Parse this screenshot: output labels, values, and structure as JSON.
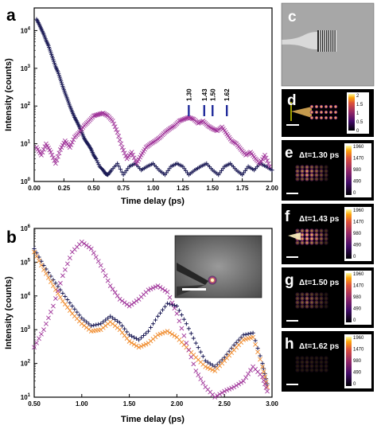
{
  "panel_labels": {
    "a": "a",
    "b": "b",
    "c": "c",
    "d": "d",
    "e": "e",
    "f": "f",
    "g": "g",
    "h": "h"
  },
  "colors": {
    "navy": "#1b1a55",
    "magenta": "#a0359a",
    "orange": "#f08a2a",
    "marker_blue": "#1f2a9a",
    "panel_bg": "#000000"
  },
  "chart_data": [
    {
      "id": "a",
      "type": "scatter",
      "xlabel": "Time delay (ps)",
      "ylabel": "Intensity (counts)",
      "xlim": [
        0,
        2
      ],
      "ylim_log10": [
        0,
        4.6
      ],
      "yscale": "log",
      "x_ticks": [
        "0.00",
        "0.25",
        "0.50",
        "0.75",
        "1.00",
        "1.25",
        "1.50",
        "1.75",
        "2.00"
      ],
      "y_ticks": [
        {
          "base": "10",
          "exp": "0"
        },
        {
          "base": "10",
          "exp": "1"
        },
        {
          "base": "10",
          "exp": "2"
        },
        {
          "base": "10",
          "exp": "3"
        },
        {
          "base": "10",
          "exp": "4"
        }
      ],
      "series": [
        {
          "marker": "plus",
          "color": "#1b1a55",
          "x": [
            0.02,
            0.04,
            0.06,
            0.08,
            0.1,
            0.12,
            0.14,
            0.16,
            0.18,
            0.2,
            0.22,
            0.24,
            0.26,
            0.28,
            0.3,
            0.32,
            0.34,
            0.36,
            0.38,
            0.4,
            0.42,
            0.44,
            0.46,
            0.48,
            0.5,
            0.52,
            0.55,
            0.58,
            0.6,
            0.62,
            0.65,
            0.7,
            0.75,
            0.8,
            0.85,
            0.9,
            0.95,
            1.0,
            1.05,
            1.1,
            1.15,
            1.2,
            1.25,
            1.3,
            1.35,
            1.4,
            1.45,
            1.5,
            1.55,
            1.6,
            1.65,
            1.7,
            1.75,
            1.8,
            1.85,
            1.9,
            1.95,
            2.0
          ],
          "y": [
            20000,
            15000,
            11000,
            8000,
            5500,
            4000,
            2600,
            1700,
            1100,
            800,
            520,
            330,
            220,
            150,
            100,
            70,
            50,
            38,
            28,
            20,
            14,
            11,
            9,
            7,
            5,
            4,
            2.5,
            2,
            1.6,
            1.5,
            2,
            3,
            1.5,
            2.5,
            3,
            2,
            2.5,
            3,
            2,
            1.5,
            2.5,
            3,
            2.5,
            1.5,
            2,
            2.5,
            3,
            2,
            1.5,
            2.5,
            3,
            2,
            1.5,
            2.5,
            2,
            3,
            2.5,
            2
          ]
        },
        {
          "marker": "cross",
          "color": "#a0359a",
          "x": [
            0.02,
            0.06,
            0.1,
            0.14,
            0.18,
            0.22,
            0.26,
            0.3,
            0.34,
            0.38,
            0.42,
            0.46,
            0.5,
            0.54,
            0.58,
            0.62,
            0.66,
            0.7,
            0.74,
            0.78,
            0.82,
            0.86,
            0.9,
            0.94,
            0.98,
            1.02,
            1.06,
            1.1,
            1.14,
            1.18,
            1.22,
            1.26,
            1.3,
            1.34,
            1.38,
            1.42,
            1.46,
            1.5,
            1.54,
            1.58,
            1.62,
            1.66,
            1.7,
            1.74,
            1.78,
            1.82,
            1.86,
            1.9,
            1.94,
            1.98
          ],
          "y": [
            8,
            5,
            10,
            6,
            3,
            7,
            12,
            8,
            15,
            20,
            30,
            40,
            55,
            60,
            65,
            55,
            40,
            20,
            8,
            4,
            6,
            3,
            5,
            8,
            10,
            12,
            15,
            20,
            25,
            30,
            40,
            45,
            50,
            45,
            35,
            40,
            30,
            25,
            22,
            28,
            18,
            12,
            10,
            7,
            5,
            6,
            4,
            3,
            5,
            2.5
          ]
        }
      ],
      "annotations": [
        "1.30",
        "1.43",
        "1.50",
        "1.62"
      ],
      "annotation_x": [
        1.3,
        1.43,
        1.5,
        1.62
      ]
    },
    {
      "id": "b",
      "type": "scatter",
      "xlabel": "Time delay (ps)",
      "ylabel": "Intensity (counts)",
      "xlim": [
        0.5,
        3.0
      ],
      "ylim_log10": [
        1,
        6
      ],
      "yscale": "log",
      "x_ticks": [
        "0.50",
        "1.00",
        "1.50",
        "2.00",
        "2.50",
        "3.00"
      ],
      "y_ticks": [
        {
          "base": "10",
          "exp": "1"
        },
        {
          "base": "10",
          "exp": "2"
        },
        {
          "base": "10",
          "exp": "3"
        },
        {
          "base": "10",
          "exp": "4"
        },
        {
          "base": "10",
          "exp": "5"
        },
        {
          "base": "10",
          "exp": "6"
        }
      ],
      "series": [
        {
          "marker": "plus",
          "color": "#1b1a55",
          "x": [
            0.5,
            0.6,
            0.7,
            0.8,
            0.9,
            1.0,
            1.1,
            1.2,
            1.3,
            1.4,
            1.5,
            1.6,
            1.7,
            1.8,
            1.9,
            2.0,
            2.1,
            2.2,
            2.3,
            2.4,
            2.5,
            2.6,
            2.7,
            2.8,
            2.9,
            2.95
          ],
          "y": [
            250000,
            80000,
            30000,
            12000,
            5000,
            2200,
            1300,
            1500,
            2500,
            1600,
            700,
            500,
            900,
            2500,
            6000,
            5000,
            1500,
            400,
            120,
            80,
            150,
            350,
            700,
            800,
            100,
            25
          ]
        },
        {
          "marker": "cross",
          "color": "#f08a2a",
          "x": [
            0.5,
            0.6,
            0.7,
            0.8,
            0.9,
            1.0,
            1.1,
            1.2,
            1.3,
            1.4,
            1.5,
            1.6,
            1.7,
            1.8,
            1.9,
            2.0,
            2.1,
            2.2,
            2.3,
            2.4,
            2.5,
            2.6,
            2.7,
            2.8,
            2.9,
            2.95
          ],
          "y": [
            200000,
            60000,
            20000,
            7000,
            3000,
            1500,
            900,
            1000,
            1700,
            1000,
            450,
            300,
            400,
            700,
            900,
            600,
            300,
            150,
            80,
            60,
            120,
            250,
            500,
            600,
            80,
            20
          ]
        },
        {
          "marker": "cross",
          "color": "#a0359a",
          "x": [
            0.5,
            0.6,
            0.7,
            0.8,
            0.9,
            1.0,
            1.1,
            1.2,
            1.3,
            1.4,
            1.5,
            1.6,
            1.7,
            1.8,
            1.9,
            2.0,
            2.1,
            2.2,
            2.3,
            2.4,
            2.5,
            2.6,
            2.7,
            2.8,
            2.9,
            2.95
          ],
          "y": [
            300,
            1000,
            5000,
            40000,
            200000,
            400000,
            250000,
            80000,
            20000,
            8000,
            5000,
            8000,
            15000,
            20000,
            13000,
            3000,
            400,
            60,
            20,
            10,
            15,
            20,
            30,
            80,
            40,
            15
          ]
        }
      ]
    }
  ],
  "panel_e": {
    "label": "Δt=1.30 ps",
    "ticks": [
      "1960",
      "1470",
      "980",
      "490",
      "0"
    ]
  },
  "panel_f": {
    "label": "Δt=1.43 ps",
    "ticks": [
      "1960",
      "1470",
      "980",
      "490",
      "0"
    ]
  },
  "panel_g": {
    "label": "Δt=1.50 ps",
    "ticks": [
      "1960",
      "1470",
      "980",
      "490",
      "0"
    ]
  },
  "panel_h": {
    "label": "Δt=1.62 ps",
    "ticks": [
      "1960",
      "1470",
      "980",
      "490",
      "0"
    ]
  },
  "panel_d": {
    "ticks": [
      "2",
      "1.5",
      "1",
      "0.5",
      "0"
    ]
  }
}
